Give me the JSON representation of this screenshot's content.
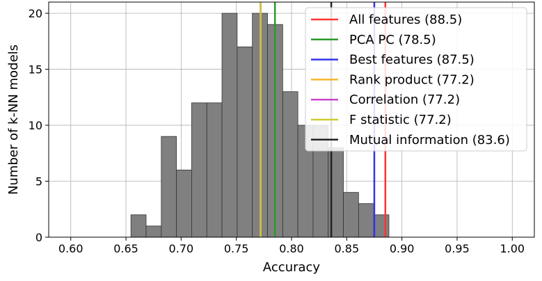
{
  "chart_data": {
    "type": "bar",
    "subtype": "histogram",
    "xlabel": "Accuracy",
    "ylabel": "Number of k-NN models",
    "xlim": [
      0.58,
      1.02
    ],
    "ylim": [
      0,
      21
    ],
    "grid": true,
    "legend_position": "top-right",
    "xticks": [
      "0.60",
      "0.65",
      "0.70",
      "0.75",
      "0.80",
      "0.85",
      "0.90",
      "0.95",
      "1.00"
    ],
    "yticks": [
      "0",
      "5",
      "10",
      "15",
      "20"
    ],
    "bin_start": 0.6545,
    "bin_width": 0.01375,
    "counts": [
      2,
      1,
      9,
      6,
      12,
      12,
      20,
      17,
      20,
      19,
      13,
      10,
      10,
      8,
      4,
      3,
      2
    ],
    "bar_color": "#808080",
    "vlines": [
      {
        "label": "All features (88.5)",
        "x": 0.885,
        "color": "#ff3333"
      },
      {
        "label": "PCA PC (78.5)",
        "x": 0.785,
        "color": "#2a9a2a"
      },
      {
        "label": "Best features (87.5)",
        "x": 0.875,
        "color": "#3333ee"
      },
      {
        "label": "Rank product (77.2)",
        "x": 0.772,
        "color": "#f5b52e"
      },
      {
        "label": "Correlation (77.2)",
        "x": 0.772,
        "color": "#cc44cc"
      },
      {
        "label": "F statistic (77.2)",
        "x": 0.772,
        "color": "#cccc33"
      },
      {
        "label": "Mutual information (83.6)",
        "x": 0.836,
        "color": "#222222"
      }
    ]
  }
}
